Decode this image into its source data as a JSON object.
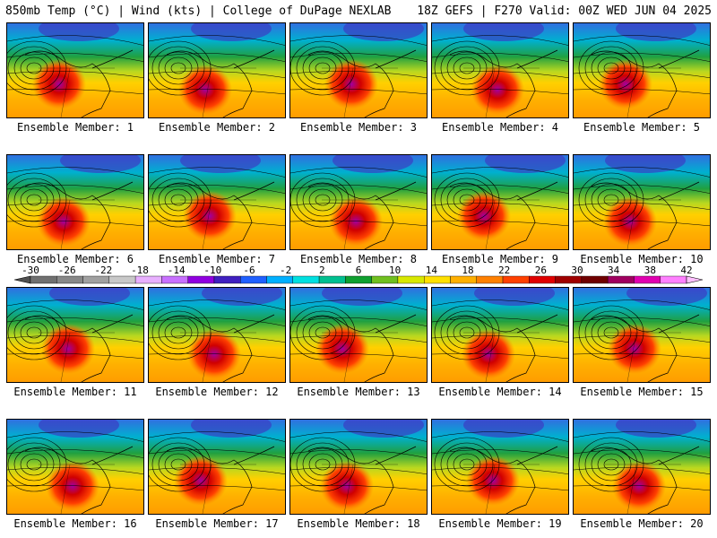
{
  "header": {
    "title_left": "850mb Temp (°C) | Wind (kts) | College of DuPage NEXLAB",
    "title_right": "18Z GEFS | F270 Valid: 00Z WED JUN 04 2025"
  },
  "members": [
    {
      "label": "Ensemble Member: 1"
    },
    {
      "label": "Ensemble Member: 2"
    },
    {
      "label": "Ensemble Member: 3"
    },
    {
      "label": "Ensemble Member: 4"
    },
    {
      "label": "Ensemble Member: 5"
    },
    {
      "label": "Ensemble Member: 6"
    },
    {
      "label": "Ensemble Member: 7"
    },
    {
      "label": "Ensemble Member: 8"
    },
    {
      "label": "Ensemble Member: 9"
    },
    {
      "label": "Ensemble Member: 10"
    },
    {
      "label": "Ensemble Member: 11"
    },
    {
      "label": "Ensemble Member: 12"
    },
    {
      "label": "Ensemble Member: 13"
    },
    {
      "label": "Ensemble Member: 14"
    },
    {
      "label": "Ensemble Member: 15"
    },
    {
      "label": "Ensemble Member: 16"
    },
    {
      "label": "Ensemble Member: 17"
    },
    {
      "label": "Ensemble Member: 18"
    },
    {
      "label": "Ensemble Member: 19"
    },
    {
      "label": "Ensemble Member: 20"
    }
  ],
  "colorbar": {
    "ticks": [
      "-30",
      "-26",
      "-22",
      "-18",
      "-14",
      "-10",
      "-6",
      "-2",
      "2",
      "6",
      "10",
      "14",
      "18",
      "22",
      "26",
      "30",
      "34",
      "38",
      "42"
    ],
    "colors": [
      "#707070",
      "#888888",
      "#a0a0a0",
      "#c8c8c8",
      "#e8b0ff",
      "#c870ff",
      "#9000e0",
      "#4020c0",
      "#2060ff",
      "#00b0ff",
      "#00e0e0",
      "#00c090",
      "#10a030",
      "#70c020",
      "#d8e800",
      "#ffe000",
      "#ffb000",
      "#ff8000",
      "#ff4000",
      "#e00000",
      "#a00000",
      "#700000",
      "#a00060",
      "#e000b0",
      "#ff80ff"
    ]
  }
}
